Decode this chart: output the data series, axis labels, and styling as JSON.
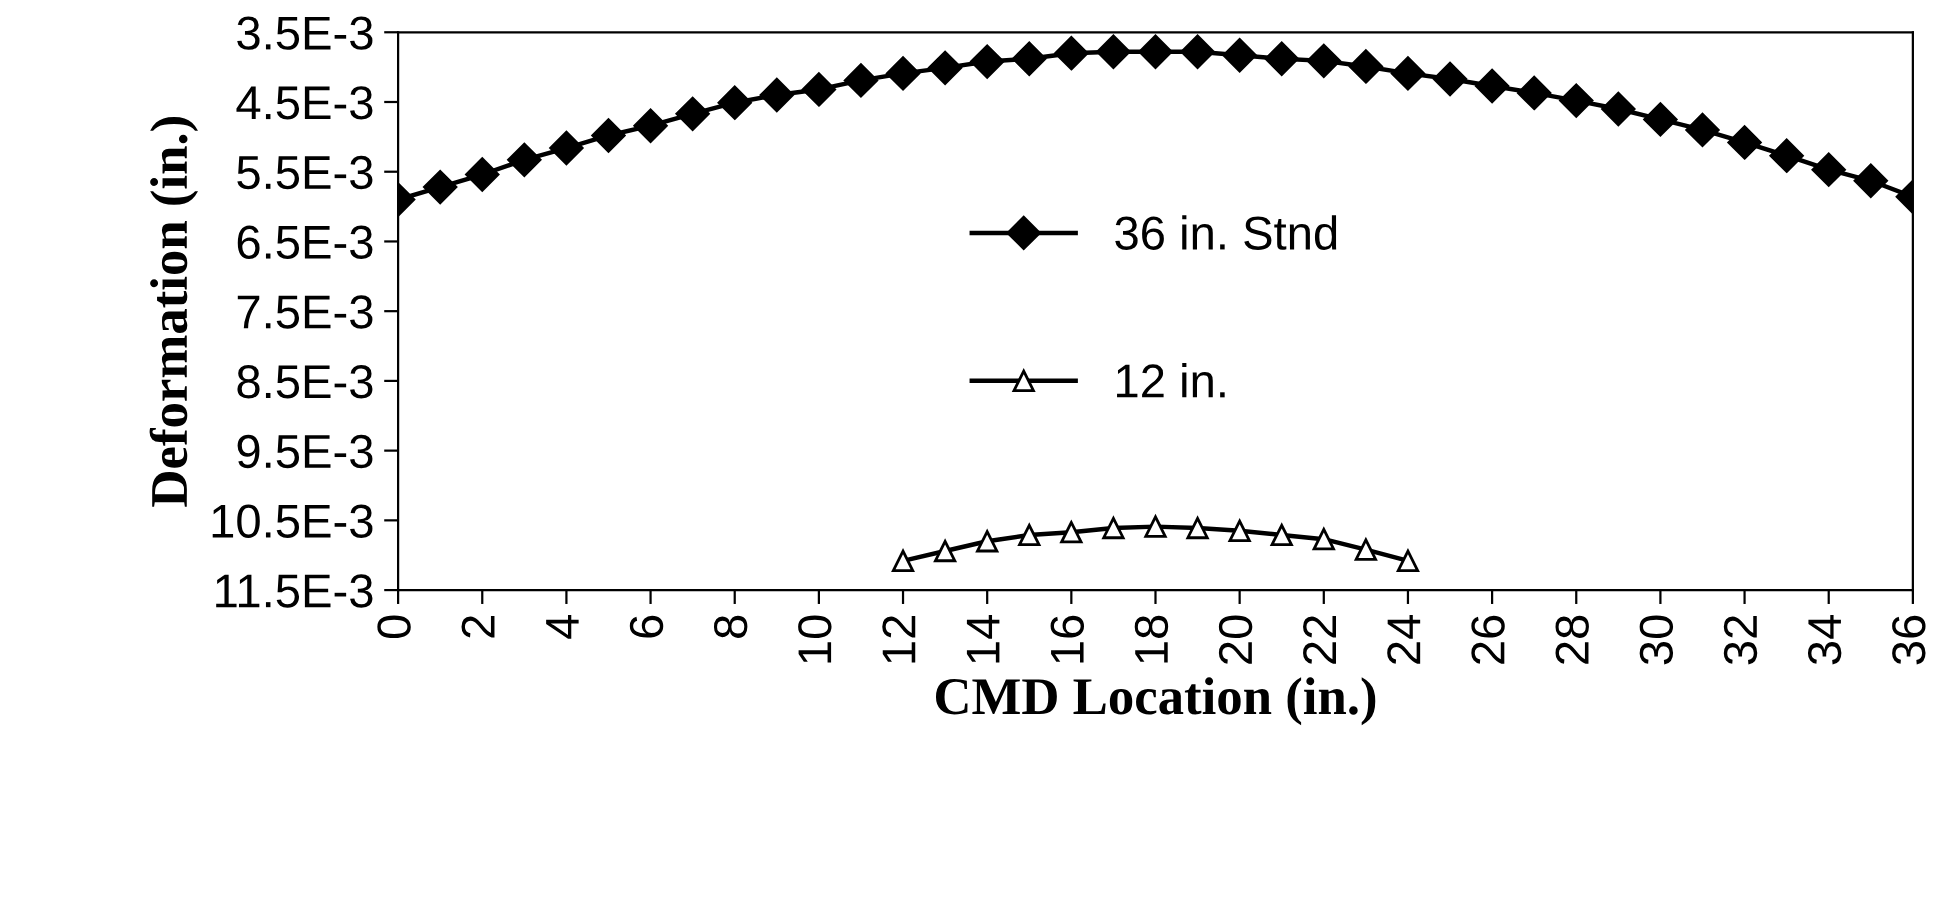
{
  "chart_data": {
    "type": "line",
    "xlabel": "CMD Location (in.)",
    "ylabel": "Deformation (in.)",
    "xlim": [
      0,
      36
    ],
    "xticks": [
      0,
      2,
      4,
      6,
      8,
      10,
      12,
      14,
      16,
      18,
      20,
      22,
      24,
      26,
      28,
      30,
      32,
      34,
      36
    ],
    "ylim": [
      0.0115,
      0.0035
    ],
    "yticks": [
      {
        "value": 0.0035,
        "label": "3.5E-3"
      },
      {
        "value": 0.0045,
        "label": "4.5E-3"
      },
      {
        "value": 0.0055,
        "label": "5.5E-3"
      },
      {
        "value": 0.0065,
        "label": "6.5E-3"
      },
      {
        "value": 0.0075,
        "label": "7.5E-3"
      },
      {
        "value": 0.0085,
        "label": "8.5E-3"
      },
      {
        "value": 0.0095,
        "label": "9.5E-3"
      },
      {
        "value": 0.0105,
        "label": "10.5E-3"
      },
      {
        "value": 0.0115,
        "label": "11.5E-3"
      }
    ],
    "grid": false,
    "legend": "center",
    "line_style": "solid",
    "series": [
      {
        "name": "36 in. Stnd",
        "color": "#000000",
        "marker": "diamond",
        "x": [
          0,
          1,
          2,
          3,
          4,
          5,
          6,
          7,
          8,
          9,
          10,
          11,
          12,
          13,
          14,
          15,
          16,
          17,
          18,
          19,
          20,
          21,
          22,
          23,
          24,
          25,
          26,
          27,
          28,
          29,
          30,
          31,
          32,
          33,
          34,
          35,
          36
        ],
        "values": [
          0.0059,
          0.00572,
          0.00554,
          0.00533,
          0.00516,
          0.00498,
          0.00484,
          0.00467,
          0.00451,
          0.0044,
          0.00432,
          0.00419,
          0.00409,
          0.00401,
          0.00392,
          0.00388,
          0.0038,
          0.00378,
          0.00378,
          0.00378,
          0.00383,
          0.00388,
          0.00391,
          0.00399,
          0.00409,
          0.00417,
          0.00427,
          0.00437,
          0.00448,
          0.0046,
          0.00475,
          0.0049,
          0.00508,
          0.00527,
          0.00547,
          0.00563,
          0.00586
        ]
      },
      {
        "name": "12 in.",
        "color": "#000000",
        "marker": "triangle",
        "x": [
          12,
          13,
          14,
          15,
          16,
          17,
          18,
          19,
          20,
          21,
          22,
          23,
          24
        ],
        "values": [
          0.01108,
          0.01094,
          0.0108,
          0.01071,
          0.01067,
          0.01061,
          0.01059,
          0.01061,
          0.01065,
          0.01071,
          0.01077,
          0.01092,
          0.01108
        ]
      }
    ]
  }
}
